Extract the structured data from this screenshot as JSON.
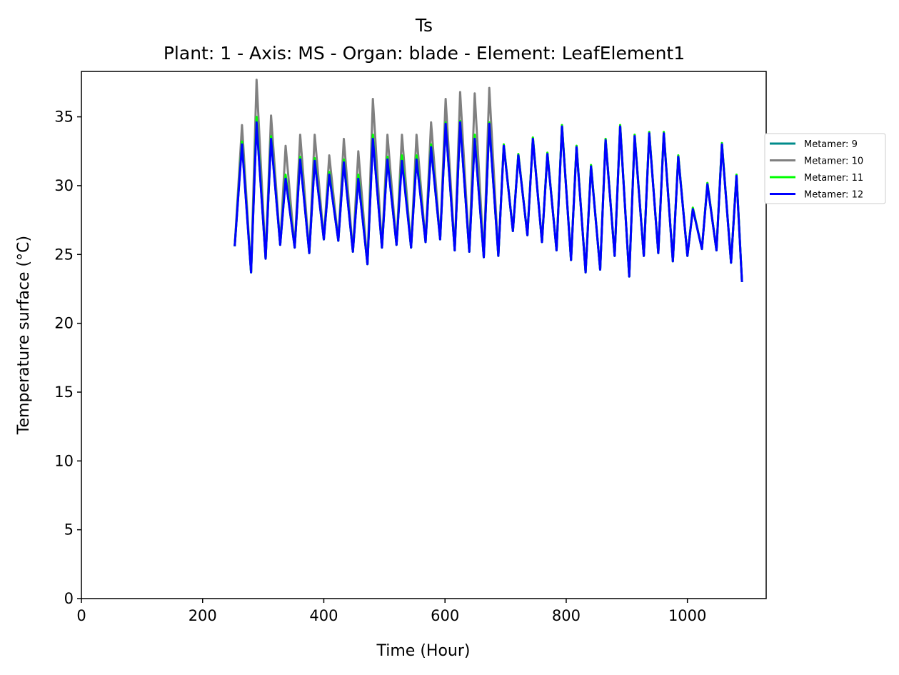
{
  "chart_data": {
    "type": "line",
    "title": "Ts",
    "subtitle": "Plant: 1 - Axis: MS - Organ: blade - Element: LeafElement1",
    "xlabel": "Time (Hour)",
    "ylabel": "Temperature surface (°C)",
    "xlim": [
      0,
      1130
    ],
    "ylim": [
      0,
      38.3
    ],
    "x_ticks": [
      0,
      200,
      400,
      600,
      800,
      1000
    ],
    "y_ticks": [
      0,
      5,
      10,
      15,
      20,
      25,
      30,
      35
    ],
    "grid": false,
    "legend_position": "outside-right",
    "daily_peaks": [
      {
        "x": 265,
        "series": [
          33.2,
          34.4,
          33.2,
          33.0
        ]
      },
      {
        "x": 289,
        "series": [
          34.6,
          37.7,
          35.0,
          34.6
        ]
      },
      {
        "x": 313,
        "series": [
          33.5,
          35.1,
          33.6,
          33.4
        ]
      },
      {
        "x": 337,
        "series": [
          30.5,
          32.9,
          30.8,
          30.5
        ]
      },
      {
        "x": 361,
        "series": [
          32.0,
          33.7,
          32.1,
          31.9
        ]
      },
      {
        "x": 385,
        "series": [
          31.8,
          33.7,
          32.0,
          31.8
        ]
      },
      {
        "x": 409,
        "series": [
          30.8,
          32.2,
          31.0,
          30.8
        ]
      },
      {
        "x": 433,
        "series": [
          31.7,
          33.4,
          31.9,
          31.7
        ]
      },
      {
        "x": 457,
        "series": [
          30.5,
          32.5,
          30.8,
          30.5
        ]
      },
      {
        "x": 481,
        "series": [
          33.4,
          36.3,
          33.7,
          33.4
        ]
      },
      {
        "x": 505,
        "series": [
          31.9,
          33.7,
          32.1,
          31.9
        ]
      },
      {
        "x": 529,
        "series": [
          32.0,
          33.7,
          32.2,
          31.8
        ]
      },
      {
        "x": 553,
        "series": [
          31.9,
          33.7,
          32.2,
          31.9
        ]
      },
      {
        "x": 577,
        "series": [
          32.7,
          34.6,
          33.0,
          32.8
        ]
      },
      {
        "x": 601,
        "series": [
          34.4,
          36.3,
          34.6,
          34.5
        ]
      },
      {
        "x": 625,
        "series": [
          34.6,
          36.8,
          34.7,
          34.6
        ]
      },
      {
        "x": 649,
        "series": [
          33.4,
          36.7,
          33.7,
          33.4
        ]
      },
      {
        "x": 673,
        "series": [
          34.4,
          37.1,
          34.6,
          34.5
        ]
      },
      {
        "x": 697,
        "series": [
          32.9,
          33.0,
          33.0,
          32.9
        ]
      },
      {
        "x": 721,
        "series": [
          32.2,
          32.3,
          32.3,
          32.2
        ]
      },
      {
        "x": 745,
        "series": [
          33.4,
          33.5,
          33.5,
          33.4
        ]
      },
      {
        "x": 769,
        "series": [
          32.3,
          32.4,
          32.4,
          32.3
        ]
      },
      {
        "x": 793,
        "series": [
          34.3,
          34.4,
          34.4,
          34.3
        ]
      },
      {
        "x": 817,
        "series": [
          32.8,
          32.9,
          32.9,
          32.8
        ]
      },
      {
        "x": 841,
        "series": [
          31.4,
          31.5,
          31.5,
          31.4
        ]
      },
      {
        "x": 865,
        "series": [
          33.3,
          33.4,
          33.4,
          33.3
        ]
      },
      {
        "x": 889,
        "series": [
          34.3,
          34.4,
          34.4,
          34.3
        ]
      },
      {
        "x": 913,
        "series": [
          33.6,
          33.7,
          33.7,
          33.6
        ]
      },
      {
        "x": 937,
        "series": [
          33.8,
          33.9,
          33.9,
          33.8
        ]
      },
      {
        "x": 961,
        "series": [
          33.8,
          33.9,
          33.9,
          33.8
        ]
      },
      {
        "x": 985,
        "series": [
          32.1,
          32.2,
          32.2,
          32.1
        ]
      },
      {
        "x": 1009,
        "series": [
          28.3,
          28.4,
          28.4,
          28.3
        ]
      },
      {
        "x": 1033,
        "series": [
          30.1,
          30.2,
          30.2,
          30.1
        ]
      },
      {
        "x": 1057,
        "series": [
          33.0,
          33.1,
          33.1,
          33.0
        ]
      },
      {
        "x": 1081,
        "series": [
          30.7,
          30.8,
          30.8,
          30.7
        ]
      }
    ],
    "daily_troughs": [
      {
        "x": 253,
        "y": 25.6
      },
      {
        "x": 280,
        "y": 23.7
      },
      {
        "x": 304,
        "y": 24.7
      },
      {
        "x": 328,
        "y": 25.7
      },
      {
        "x": 352,
        "y": 25.5
      },
      {
        "x": 376,
        "y": 25.1
      },
      {
        "x": 400,
        "y": 26.1
      },
      {
        "x": 424,
        "y": 26.0
      },
      {
        "x": 448,
        "y": 25.2
      },
      {
        "x": 472,
        "y": 24.3
      },
      {
        "x": 496,
        "y": 25.5
      },
      {
        "x": 520,
        "y": 25.7
      },
      {
        "x": 544,
        "y": 25.5
      },
      {
        "x": 568,
        "y": 25.9
      },
      {
        "x": 592,
        "y": 26.1
      },
      {
        "x": 616,
        "y": 25.3
      },
      {
        "x": 640,
        "y": 25.2
      },
      {
        "x": 664,
        "y": 24.8
      },
      {
        "x": 688,
        "y": 24.9
      },
      {
        "x": 712,
        "y": 26.7
      },
      {
        "x": 736,
        "y": 26.4
      },
      {
        "x": 760,
        "y": 25.9
      },
      {
        "x": 784,
        "y": 25.3
      },
      {
        "x": 808,
        "y": 24.6
      },
      {
        "x": 832,
        "y": 23.7
      },
      {
        "x": 856,
        "y": 23.9
      },
      {
        "x": 880,
        "y": 24.9
      },
      {
        "x": 904,
        "y": 23.4
      },
      {
        "x": 928,
        "y": 24.9
      },
      {
        "x": 952,
        "y": 25.1
      },
      {
        "x": 976,
        "y": 24.5
      },
      {
        "x": 1000,
        "y": 24.9
      },
      {
        "x": 1024,
        "y": 25.4
      },
      {
        "x": 1048,
        "y": 25.3
      },
      {
        "x": 1072,
        "y": 24.4
      },
      {
        "x": 1090,
        "y": 23.0
      }
    ],
    "series": [
      {
        "name": "Metamer: 9",
        "color": "#008b8b"
      },
      {
        "name": "Metamer: 10",
        "color": "#808080"
      },
      {
        "name": "Metamer: 11",
        "color": "#00ff00"
      },
      {
        "name": "Metamer: 12",
        "color": "#0000ff"
      }
    ]
  }
}
